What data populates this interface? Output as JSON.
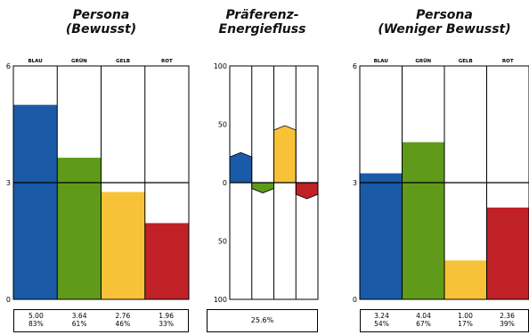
{
  "chart_data": [
    {
      "type": "bar",
      "title": "Persona (Bewusst)",
      "title_lines": [
        "Persona",
        "(Bewusst)"
      ],
      "categories": [
        "BLAU",
        "GRÜN",
        "GELB",
        "ROT"
      ],
      "values": [
        5.0,
        3.64,
        2.76,
        1.96
      ],
      "value_labels": [
        "5.00",
        "3.64",
        "2.76",
        "1.96"
      ],
      "percent_labels": [
        "83%",
        "61%",
        "46%",
        "33%"
      ],
      "ylim": [
        0,
        6
      ],
      "yticks": [
        "0",
        "3",
        "6"
      ],
      "colors": [
        "#1b5aa6",
        "#5f9a1a",
        "#f8c238",
        "#c02127"
      ]
    },
    {
      "type": "bar",
      "title": "Präferenz-Energiefluss",
      "title_lines": [
        "Präferenz-",
        "Energiefluss"
      ],
      "categories": [
        "BLAU",
        "GRÜN",
        "GELB",
        "ROT"
      ],
      "values": [
        22,
        -5,
        45,
        -10
      ],
      "ylim": [
        -100,
        100
      ],
      "yticks": [
        "100",
        "50",
        "0",
        "50",
        "100"
      ],
      "summary": "25.6%",
      "colors": [
        "#1b5aa6",
        "#5f9a1a",
        "#f8c238",
        "#c02127"
      ]
    },
    {
      "type": "bar",
      "title": "Persona (Weniger Bewusst)",
      "title_lines": [
        "Persona",
        "(Weniger Bewusst)"
      ],
      "categories": [
        "BLAU",
        "GRÜN",
        "GELB",
        "ROT"
      ],
      "values": [
        3.24,
        4.04,
        1.0,
        2.36
      ],
      "value_labels": [
        "3.24",
        "4.04",
        "1.00",
        "2.36"
      ],
      "percent_labels": [
        "54%",
        "67%",
        "17%",
        "39%"
      ],
      "ylim": [
        0,
        6
      ],
      "yticks": [
        "0",
        "3",
        "6"
      ],
      "colors": [
        "#1b5aa6",
        "#5f9a1a",
        "#f8c238",
        "#c02127"
      ]
    }
  ]
}
